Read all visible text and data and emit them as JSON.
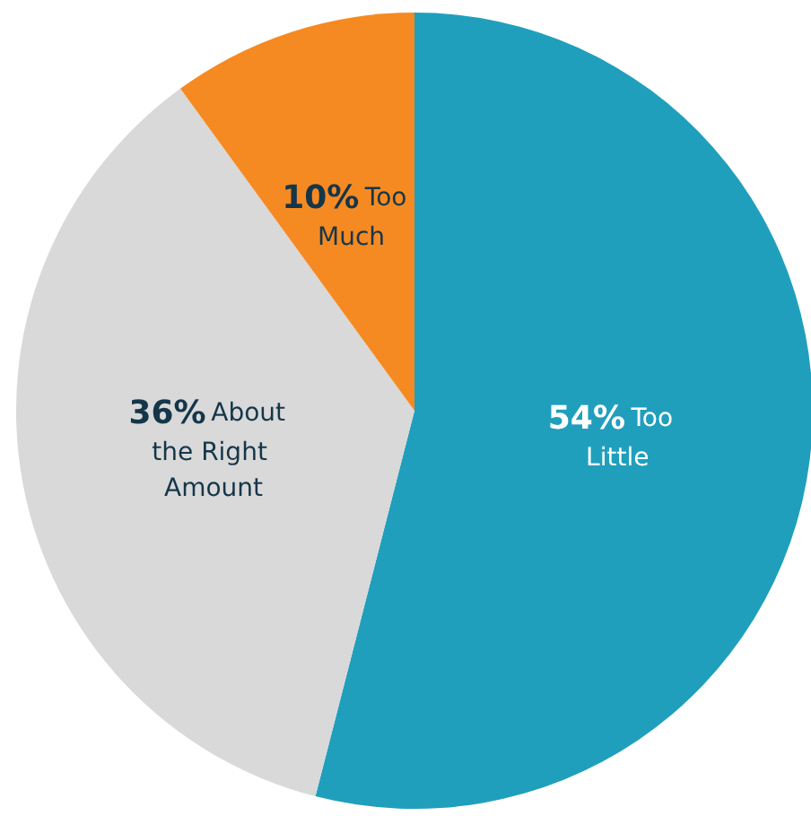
{
  "chart_data": {
    "type": "pie",
    "categories": [
      "Too Little",
      "About the Right Amount",
      "Too Much"
    ],
    "values": [
      54,
      36,
      10
    ],
    "value_labels": [
      "54%",
      "36%",
      "10%"
    ],
    "colors": [
      "#209fbd",
      "#d9d9d9",
      "#f58a22"
    ]
  }
}
